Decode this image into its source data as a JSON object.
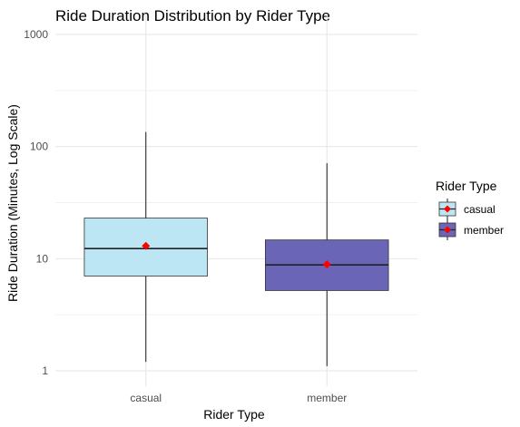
{
  "chart_data": {
    "type": "boxplot",
    "title": "Ride Duration Distribution by Rider Type",
    "xlabel": "Rider Type",
    "ylabel": "Ride Duration (Minutes, Log Scale)",
    "y_scale": "log10",
    "ylim": [
      0.8,
      1000
    ],
    "y_ticks": [
      1,
      10,
      100,
      1000
    ],
    "y_tick_labels": [
      "1",
      "10",
      "100",
      "1000"
    ],
    "categories": [
      "casual",
      "member"
    ],
    "series": [
      {
        "category": "casual",
        "whisker_low": 1.2,
        "q1": 7,
        "median": 12.3,
        "q3": 23,
        "whisker_high": 135,
        "mean": 13,
        "fill": "#bde6f5"
      },
      {
        "category": "member",
        "whisker_low": 1.1,
        "q1": 5.2,
        "median": 8.8,
        "q3": 14.7,
        "whisker_high": 71,
        "mean": 8.9,
        "fill": "#6a65b7"
      }
    ],
    "mean_marker_color": "#ff0000",
    "grid": true,
    "legend": {
      "title": "Rider Type",
      "position": "right",
      "entries": [
        "casual",
        "member"
      ]
    }
  }
}
